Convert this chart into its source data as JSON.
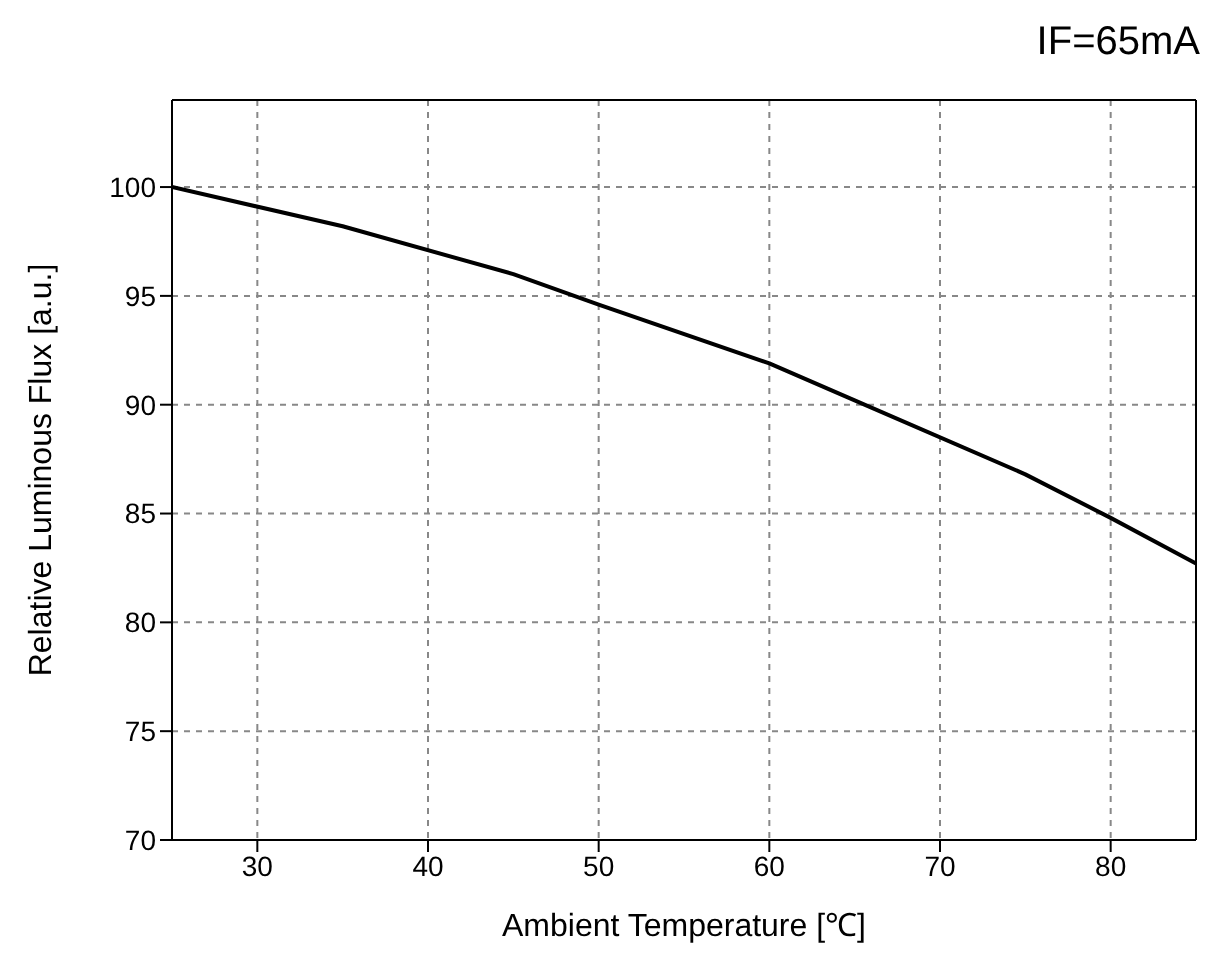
{
  "chart_data": {
    "type": "line",
    "xlabel": "Ambient Temperature [℃]",
    "ylabel": "Relative Luminous Flux [a.u.]",
    "annotations": [
      "IF=65mA"
    ],
    "x": [
      25,
      35,
      45,
      50,
      60,
      65,
      75,
      80,
      85
    ],
    "series": [
      {
        "color": "#000000",
        "values": [
          100,
          98.2,
          96,
          94.6,
          91.9,
          90.2,
          86.8,
          84.8,
          82.7
        ]
      }
    ],
    "xlim": [
      25,
      85
    ],
    "xticks": [
      30,
      40,
      50,
      60,
      70,
      80
    ],
    "ylim": [
      70,
      104
    ],
    "yticks": [
      70,
      75,
      80,
      85,
      90,
      95,
      100
    ],
    "grid": true,
    "marker": "none",
    "line_style": "solid"
  }
}
